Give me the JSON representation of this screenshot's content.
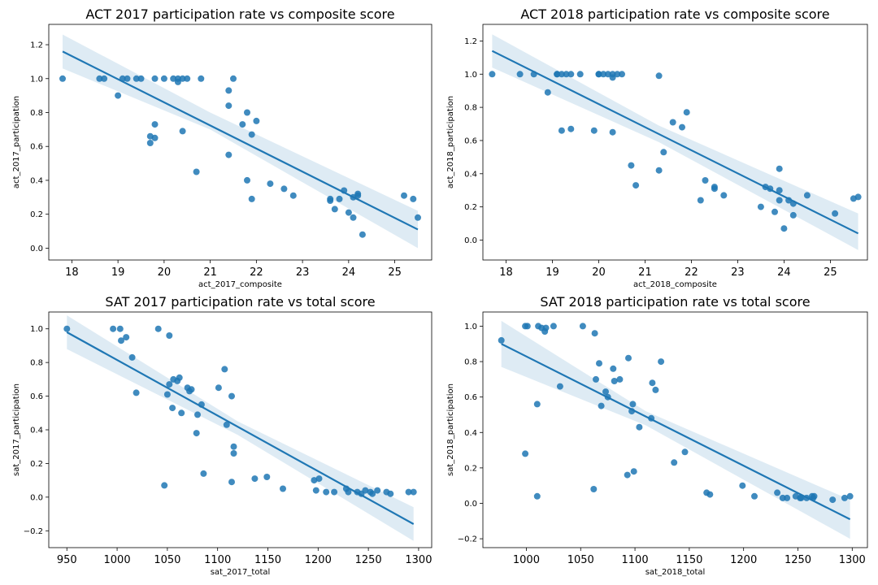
{
  "chart_data": [
    {
      "type": "scatter",
      "title": "ACT 2017 participation rate vs composite score",
      "xlabel": "act_2017_composite",
      "ylabel": "act_2017_participation",
      "xlim": [
        17.5,
        25.8
      ],
      "ylim": [
        -0.07,
        1.32
      ],
      "xticks": [
        18,
        19,
        20,
        21,
        22,
        23,
        24,
        25
      ],
      "yticks": [
        0.0,
        0.2,
        0.4,
        0.6,
        0.8,
        1.0,
        1.2
      ],
      "xticklabels": [
        "18",
        "19",
        "20",
        "21",
        "22",
        "23",
        "24",
        "25"
      ],
      "yticklabels": [
        "0.0",
        "0.2",
        "0.4",
        "0.6",
        "0.8",
        "1.0",
        "1.2"
      ],
      "x_tick_font": 13,
      "y_tick_font": 10,
      "color": "#1f77b4",
      "regression": {
        "x": [
          17.8,
          25.5
        ],
        "y": [
          1.16,
          0.11
        ]
      },
      "ci_band": {
        "x": [
          17.8,
          21.0,
          25.5
        ],
        "upper": [
          1.26,
          0.8,
          0.22
        ],
        "lower": [
          1.06,
          0.7,
          0.0
        ]
      },
      "points": [
        [
          17.8,
          1.0
        ],
        [
          18.6,
          1.0
        ],
        [
          18.7,
          1.0
        ],
        [
          19.0,
          0.9
        ],
        [
          19.1,
          1.0
        ],
        [
          19.2,
          1.0
        ],
        [
          19.4,
          1.0
        ],
        [
          19.5,
          1.0
        ],
        [
          19.7,
          0.66
        ],
        [
          19.7,
          0.62
        ],
        [
          19.8,
          0.73
        ],
        [
          19.8,
          1.0
        ],
        [
          19.8,
          0.65
        ],
        [
          20.0,
          1.0
        ],
        [
          20.2,
          1.0
        ],
        [
          20.3,
          1.0
        ],
        [
          20.3,
          0.98
        ],
        [
          20.4,
          1.0
        ],
        [
          20.4,
          0.69
        ],
        [
          20.5,
          1.0
        ],
        [
          20.7,
          0.45
        ],
        [
          20.8,
          1.0
        ],
        [
          21.4,
          0.93
        ],
        [
          21.4,
          0.84
        ],
        [
          21.4,
          0.55
        ],
        [
          21.5,
          1.0
        ],
        [
          21.7,
          0.73
        ],
        [
          21.8,
          0.4
        ],
        [
          21.8,
          0.8
        ],
        [
          21.9,
          0.29
        ],
        [
          21.9,
          0.67
        ],
        [
          22.0,
          0.75
        ],
        [
          22.3,
          0.38
        ],
        [
          22.6,
          0.35
        ],
        [
          22.8,
          0.31
        ],
        [
          23.6,
          0.29
        ],
        [
          23.6,
          0.28
        ],
        [
          23.7,
          0.23
        ],
        [
          23.8,
          0.29
        ],
        [
          23.9,
          0.34
        ],
        [
          24.0,
          0.21
        ],
        [
          24.1,
          0.18
        ],
        [
          24.1,
          0.3
        ],
        [
          24.2,
          0.31
        ],
        [
          24.2,
          0.32
        ],
        [
          24.3,
          0.08
        ],
        [
          25.2,
          0.31
        ],
        [
          25.4,
          0.29
        ],
        [
          25.5,
          0.18
        ]
      ]
    },
    {
      "type": "scatter",
      "title": "ACT 2018 participation rate vs composite score",
      "xlabel": "act_2018_composite",
      "ylabel": "act_2018_participation",
      "xlim": [
        17.5,
        25.8
      ],
      "ylim": [
        -0.12,
        1.3
      ],
      "xticks": [
        18,
        19,
        20,
        21,
        22,
        23,
        24,
        25
      ],
      "yticks": [
        0.0,
        0.2,
        0.4,
        0.6,
        0.8,
        1.0,
        1.2
      ],
      "xticklabels": [
        "18",
        "19",
        "20",
        "21",
        "22",
        "23",
        "24",
        "25"
      ],
      "yticklabels": [
        "0.0",
        "0.2",
        "0.4",
        "0.6",
        "0.8",
        "1.0",
        "1.2"
      ],
      "x_tick_font": 13,
      "y_tick_font": 10,
      "color": "#1f77b4",
      "regression": {
        "x": [
          17.7,
          25.6
        ],
        "y": [
          1.14,
          0.04
        ]
      },
      "ci_band": {
        "x": [
          17.7,
          21.3,
          25.6
        ],
        "upper": [
          1.24,
          0.69,
          0.16
        ],
        "lower": [
          1.04,
          0.59,
          -0.06
        ]
      },
      "points": [
        [
          17.7,
          1.0
        ],
        [
          18.3,
          1.0
        ],
        [
          18.6,
          1.0
        ],
        [
          18.9,
          0.89
        ],
        [
          19.1,
          1.0
        ],
        [
          19.1,
          1.0
        ],
        [
          19.2,
          0.66
        ],
        [
          19.2,
          1.0
        ],
        [
          19.3,
          1.0
        ],
        [
          19.4,
          0.67
        ],
        [
          19.4,
          1.0
        ],
        [
          19.6,
          1.0
        ],
        [
          19.9,
          0.66
        ],
        [
          20.0,
          1.0
        ],
        [
          20.0,
          1.0
        ],
        [
          20.1,
          1.0
        ],
        [
          20.2,
          1.0
        ],
        [
          20.3,
          0.65
        ],
        [
          20.3,
          0.98
        ],
        [
          20.3,
          1.0
        ],
        [
          20.4,
          1.0
        ],
        [
          20.5,
          1.0
        ],
        [
          20.7,
          0.45
        ],
        [
          20.8,
          0.33
        ],
        [
          21.3,
          0.42
        ],
        [
          21.3,
          0.99
        ],
        [
          21.4,
          0.53
        ],
        [
          21.6,
          0.71
        ],
        [
          21.8,
          0.68
        ],
        [
          21.9,
          0.77
        ],
        [
          22.2,
          0.24
        ],
        [
          22.3,
          0.36
        ],
        [
          22.5,
          0.32
        ],
        [
          22.5,
          0.31
        ],
        [
          22.7,
          0.27
        ],
        [
          23.5,
          0.2
        ],
        [
          23.6,
          0.32
        ],
        [
          23.7,
          0.31
        ],
        [
          23.8,
          0.17
        ],
        [
          23.9,
          0.3
        ],
        [
          23.9,
          0.43
        ],
        [
          23.9,
          0.24
        ],
        [
          24.0,
          0.07
        ],
        [
          24.1,
          0.24
        ],
        [
          24.2,
          0.22
        ],
        [
          24.2,
          0.15
        ],
        [
          24.5,
          0.27
        ],
        [
          25.1,
          0.16
        ],
        [
          25.5,
          0.25
        ],
        [
          25.6,
          0.26
        ]
      ]
    },
    {
      "type": "scatter",
      "title": "SAT 2017 participation rate vs total score",
      "xlabel": "sat_2017_total",
      "ylabel": "sat_2017_participation",
      "xlim": [
        932,
        1313
      ],
      "ylim": [
        -0.3,
        1.1
      ],
      "xticks": [
        950,
        1000,
        1050,
        1100,
        1150,
        1200,
        1250,
        1300
      ],
      "yticks": [
        -0.2,
        0.0,
        0.2,
        0.4,
        0.6,
        0.8,
        1.0
      ],
      "xticklabels": [
        "950",
        "1000",
        "1050",
        "1100",
        "1150",
        "1200",
        "1250",
        "1300"
      ],
      "yticklabels": [
        "−0.2",
        "0.0",
        "0.2",
        "0.4",
        "0.6",
        "0.8",
        "1.0"
      ],
      "x_tick_font": 13,
      "y_tick_font": 10,
      "color": "#1f77b4",
      "regression": {
        "x": [
          950,
          1295
        ],
        "y": [
          0.98,
          -0.16
        ]
      },
      "ci_band": {
        "x": [
          950,
          1120,
          1295
        ],
        "upper": [
          1.08,
          0.45,
          -0.06
        ],
        "lower": [
          0.88,
          0.37,
          -0.26
        ]
      },
      "points": [
        [
          950,
          1.0
        ],
        [
          996,
          1.0
        ],
        [
          1003,
          1.0
        ],
        [
          1004,
          0.93
        ],
        [
          1009,
          0.95
        ],
        [
          1015,
          0.83
        ],
        [
          1019,
          0.62
        ],
        [
          1041,
          1.0
        ],
        [
          1047,
          0.07
        ],
        [
          1050,
          0.61
        ],
        [
          1052,
          0.96
        ],
        [
          1052,
          0.67
        ],
        [
          1055,
          0.53
        ],
        [
          1056,
          0.7
        ],
        [
          1060,
          0.69
        ],
        [
          1062,
          0.71
        ],
        [
          1064,
          0.5
        ],
        [
          1070,
          0.65
        ],
        [
          1072,
          0.63
        ],
        [
          1074,
          0.64
        ],
        [
          1079,
          0.38
        ],
        [
          1080,
          0.49
        ],
        [
          1084,
          0.55
        ],
        [
          1086,
          0.14
        ],
        [
          1101,
          0.65
        ],
        [
          1107,
          0.76
        ],
        [
          1109,
          0.43
        ],
        [
          1114,
          0.6
        ],
        [
          1114,
          0.09
        ],
        [
          1116,
          0.3
        ],
        [
          1116,
          0.26
        ],
        [
          1137,
          0.11
        ],
        [
          1149,
          0.12
        ],
        [
          1165,
          0.05
        ],
        [
          1196,
          0.1
        ],
        [
          1198,
          0.04
        ],
        [
          1201,
          0.11
        ],
        [
          1208,
          0.03
        ],
        [
          1216,
          0.03
        ],
        [
          1228,
          0.05
        ],
        [
          1230,
          0.03
        ],
        [
          1239,
          0.03
        ],
        [
          1243,
          0.02
        ],
        [
          1247,
          0.04
        ],
        [
          1252,
          0.03
        ],
        [
          1254,
          0.02
        ],
        [
          1259,
          0.04
        ],
        [
          1268,
          0.03
        ],
        [
          1272,
          0.02
        ],
        [
          1290,
          0.03
        ],
        [
          1295,
          0.03
        ]
      ]
    },
    {
      "type": "scatter",
      "title": "SAT 2018 participation rate vs total score",
      "xlabel": "sat_2018_total",
      "ylabel": "sat_2018_participation",
      "xlim": [
        960,
        1314
      ],
      "ylim": [
        -0.25,
        1.08
      ],
      "xticks": [
        1000,
        1050,
        1100,
        1150,
        1200,
        1250,
        1300
      ],
      "yticks": [
        -0.2,
        0.0,
        0.2,
        0.4,
        0.6,
        0.8,
        1.0
      ],
      "xticklabels": [
        "1000",
        "1050",
        "1100",
        "1150",
        "1200",
        "1250",
        "1300"
      ],
      "yticklabels": [
        "−0.2",
        "0.0",
        "0.2",
        "0.4",
        "0.6",
        "0.8",
        "1.0"
      ],
      "x_tick_font": 13,
      "y_tick_font": 10,
      "color": "#1f77b4",
      "regression": {
        "x": [
          977,
          1298
        ],
        "y": [
          0.9,
          -0.09
        ]
      },
      "ci_band": {
        "x": [
          977,
          1110,
          1298
        ],
        "upper": [
          1.03,
          0.52,
          0.02
        ],
        "lower": [
          0.77,
          0.44,
          -0.2
        ]
      },
      "points": [
        [
          977,
          0.92
        ],
        [
          999,
          0.28
        ],
        [
          999,
          1.0
        ],
        [
          1001,
          1.0
        ],
        [
          1010,
          0.56
        ],
        [
          1010,
          0.04
        ],
        [
          1011,
          1.0
        ],
        [
          1014,
          0.99
        ],
        [
          1017,
          0.97
        ],
        [
          1018,
          0.99
        ],
        [
          1025,
          1.0
        ],
        [
          1031,
          0.66
        ],
        [
          1052,
          1.0
        ],
        [
          1062,
          0.08
        ],
        [
          1063,
          0.96
        ],
        [
          1064,
          0.7
        ],
        [
          1067,
          0.79
        ],
        [
          1069,
          0.55
        ],
        [
          1073,
          0.63
        ],
        [
          1075,
          0.6
        ],
        [
          1080,
          0.76
        ],
        [
          1081,
          0.69
        ],
        [
          1086,
          0.7
        ],
        [
          1093,
          0.16
        ],
        [
          1094,
          0.82
        ],
        [
          1097,
          0.52
        ],
        [
          1098,
          0.56
        ],
        [
          1099,
          0.18
        ],
        [
          1104,
          0.43
        ],
        [
          1115,
          0.48
        ],
        [
          1116,
          0.68
        ],
        [
          1119,
          0.64
        ],
        [
          1124,
          0.8
        ],
        [
          1136,
          0.23
        ],
        [
          1146,
          0.29
        ],
        [
          1166,
          0.06
        ],
        [
          1169,
          0.05
        ],
        [
          1199,
          0.1
        ],
        [
          1210,
          0.04
        ],
        [
          1231,
          0.06
        ],
        [
          1236,
          0.03
        ],
        [
          1240,
          0.03
        ],
        [
          1248,
          0.04
        ],
        [
          1252,
          0.03
        ],
        [
          1253,
          0.03
        ],
        [
          1258,
          0.03
        ],
        [
          1263,
          0.04
        ],
        [
          1264,
          0.03
        ],
        [
          1265,
          0.04
        ],
        [
          1282,
          0.02
        ],
        [
          1293,
          0.03
        ],
        [
          1298,
          0.04
        ]
      ]
    }
  ]
}
